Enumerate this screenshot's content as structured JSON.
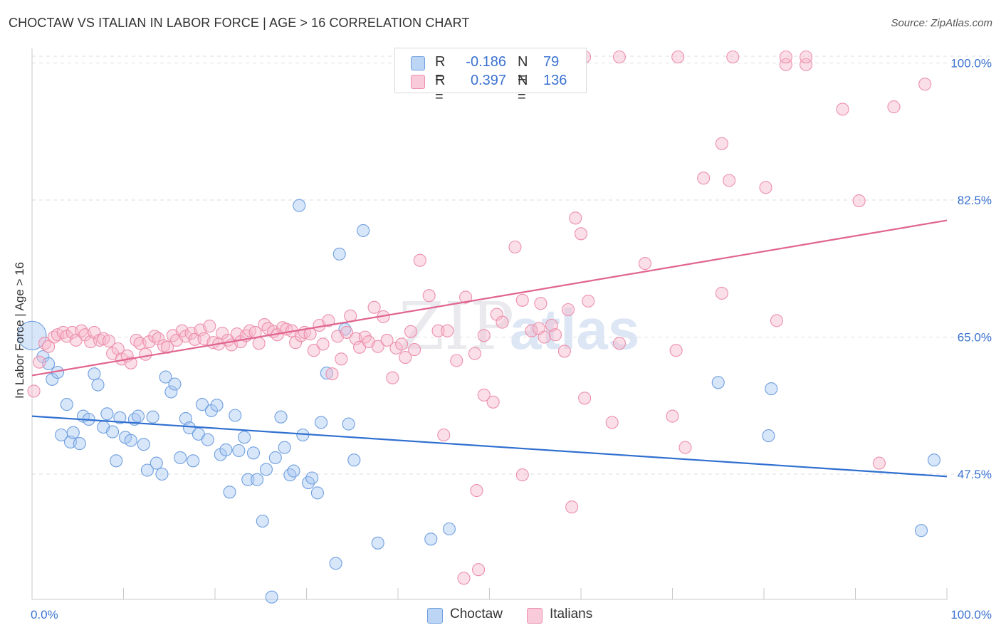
{
  "title": "CHOCTAW VS ITALIAN IN LABOR FORCE | AGE > 16 CORRELATION CHART",
  "source": "Source: ZipAtlas.com",
  "watermark": "ZIPatlas",
  "colors": {
    "choctaw_fill": "#a9c8f2",
    "choctaw_stroke": "#6f9fe0",
    "choctaw_line": "#2f6fd0",
    "italians_fill": "#f6b9cc",
    "italians_stroke": "#ec8fab",
    "italians_line": "#e0648f",
    "axis_text": "#3b73d1"
  },
  "legend": {
    "rows": [
      {
        "series": "choctaw",
        "r_label": "R =",
        "r_value": "-0.186",
        "n_label": "N =",
        "n_value": "79"
      },
      {
        "series": "italians",
        "r_label": "R =",
        "r_value": "0.397",
        "n_label": "N =",
        "n_value": "136"
      }
    ]
  },
  "bottom_legend": [
    "Choctaw",
    "Italians"
  ],
  "chart_data": {
    "type": "scatter",
    "title": "CHOCTAW VS ITALIAN IN LABOR FORCE | AGE > 16 CORRELATION CHART",
    "xlabel": "",
    "ylabel": "In Labor Force | Age > 16",
    "xlim": [
      0,
      100
    ],
    "ylim": [
      31.5,
      101.5
    ],
    "x_tick_labels": [
      "0.0%",
      "100.0%"
    ],
    "y_ticks": [
      47.5,
      65.0,
      82.5,
      100.0
    ],
    "y_tick_labels": [
      "47.5%",
      "65.0%",
      "82.5%",
      "100.0%"
    ],
    "grid": "horizontal dashed",
    "legend_position": "top-center",
    "series": [
      {
        "name": "Choctaw",
        "color": "#6f9fe0",
        "trend": {
          "x": [
            0,
            100
          ],
          "y": [
            54.9,
            47.2
          ]
        },
        "points": [
          [
            0.0,
            65.2
          ],
          [
            1.2,
            62.5
          ],
          [
            1.8,
            61.6
          ],
          [
            2.2,
            59.6
          ],
          [
            2.8,
            60.5
          ],
          [
            3.8,
            56.4
          ],
          [
            3.2,
            52.5
          ],
          [
            4.2,
            51.6
          ],
          [
            4.5,
            52.8
          ],
          [
            5.2,
            51.4
          ],
          [
            5.6,
            54.9
          ],
          [
            6.2,
            54.5
          ],
          [
            6.8,
            60.3
          ],
          [
            7.2,
            58.9
          ],
          [
            7.8,
            53.5
          ],
          [
            8.2,
            55.2
          ],
          [
            8.8,
            52.9
          ],
          [
            9.2,
            49.2
          ],
          [
            9.6,
            54.7
          ],
          [
            10.2,
            52.2
          ],
          [
            10.8,
            51.8
          ],
          [
            11.2,
            54.5
          ],
          [
            11.6,
            54.9
          ],
          [
            12.2,
            51.3
          ],
          [
            12.6,
            48.0
          ],
          [
            13.2,
            54.8
          ],
          [
            13.6,
            48.9
          ],
          [
            14.2,
            47.5
          ],
          [
            14.6,
            59.9
          ],
          [
            15.2,
            58.0
          ],
          [
            15.6,
            59.0
          ],
          [
            16.2,
            49.6
          ],
          [
            16.8,
            54.6
          ],
          [
            17.2,
            53.4
          ],
          [
            17.6,
            49.2
          ],
          [
            18.2,
            52.6
          ],
          [
            18.6,
            56.4
          ],
          [
            19.2,
            51.9
          ],
          [
            19.6,
            55.6
          ],
          [
            20.2,
            56.3
          ],
          [
            20.6,
            50.0
          ],
          [
            21.2,
            50.6
          ],
          [
            21.6,
            45.2
          ],
          [
            22.2,
            55.0
          ],
          [
            22.6,
            50.5
          ],
          [
            23.2,
            52.2
          ],
          [
            23.6,
            46.8
          ],
          [
            24.2,
            50.2
          ],
          [
            24.6,
            46.8
          ],
          [
            25.2,
            41.5
          ],
          [
            25.6,
            48.1
          ],
          [
            26.2,
            31.8
          ],
          [
            26.6,
            49.6
          ],
          [
            27.2,
            54.8
          ],
          [
            27.6,
            50.9
          ],
          [
            28.2,
            47.4
          ],
          [
            28.6,
            47.9
          ],
          [
            29.2,
            81.8
          ],
          [
            29.6,
            52.5
          ],
          [
            30.2,
            46.4
          ],
          [
            30.6,
            47.0
          ],
          [
            31.2,
            45.1
          ],
          [
            31.6,
            54.1
          ],
          [
            32.2,
            60.4
          ],
          [
            33.2,
            36.1
          ],
          [
            33.6,
            75.6
          ],
          [
            34.2,
            66.0
          ],
          [
            34.6,
            53.9
          ],
          [
            35.2,
            49.3
          ],
          [
            36.2,
            78.6
          ],
          [
            37.8,
            38.7
          ],
          [
            43.6,
            39.2
          ],
          [
            45.6,
            40.5
          ],
          [
            75.0,
            59.2
          ],
          [
            80.5,
            52.4
          ],
          [
            80.8,
            58.4
          ],
          [
            97.2,
            40.3
          ],
          [
            98.6,
            49.3
          ]
        ]
      },
      {
        "name": "Italians",
        "color": "#ec8fab",
        "trend": {
          "x": [
            0,
            100
          ],
          "y": [
            60.1,
            79.9
          ]
        },
        "points": [
          [
            0.2,
            58.1
          ],
          [
            0.8,
            61.8
          ],
          [
            1.4,
            64.2
          ],
          [
            1.8,
            63.8
          ],
          [
            2.4,
            65.0
          ],
          [
            2.8,
            65.3
          ],
          [
            3.4,
            65.6
          ],
          [
            3.8,
            65.1
          ],
          [
            4.4,
            65.6
          ],
          [
            4.8,
            64.6
          ],
          [
            5.4,
            65.8
          ],
          [
            5.8,
            65.3
          ],
          [
            6.4,
            64.4
          ],
          [
            6.8,
            65.6
          ],
          [
            7.4,
            64.6
          ],
          [
            7.8,
            64.8
          ],
          [
            8.4,
            64.5
          ],
          [
            8.8,
            62.9
          ],
          [
            9.4,
            63.5
          ],
          [
            9.8,
            62.2
          ],
          [
            10.4,
            62.6
          ],
          [
            10.8,
            61.7
          ],
          [
            11.4,
            64.6
          ],
          [
            11.8,
            64.2
          ],
          [
            12.4,
            62.8
          ],
          [
            12.8,
            64.4
          ],
          [
            13.4,
            65.1
          ],
          [
            13.8,
            64.8
          ],
          [
            14.4,
            63.9
          ],
          [
            14.8,
            63.7
          ],
          [
            15.4,
            65.2
          ],
          [
            15.8,
            64.6
          ],
          [
            16.4,
            65.8
          ],
          [
            16.8,
            65.1
          ],
          [
            17.4,
            65.5
          ],
          [
            17.8,
            64.7
          ],
          [
            18.4,
            65.9
          ],
          [
            18.8,
            64.8
          ],
          [
            19.4,
            66.4
          ],
          [
            19.8,
            64.3
          ],
          [
            20.4,
            64.1
          ],
          [
            20.8,
            65.5
          ],
          [
            21.4,
            64.6
          ],
          [
            21.8,
            64.0
          ],
          [
            22.4,
            65.4
          ],
          [
            22.8,
            64.4
          ],
          [
            23.4,
            65.2
          ],
          [
            23.8,
            65.8
          ],
          [
            24.4,
            65.6
          ],
          [
            24.8,
            64.2
          ],
          [
            25.4,
            66.6
          ],
          [
            25.8,
            66.1
          ],
          [
            26.4,
            65.7
          ],
          [
            26.8,
            65.3
          ],
          [
            27.4,
            66.2
          ],
          [
            27.8,
            66.0
          ],
          [
            28.4,
            65.8
          ],
          [
            28.8,
            64.3
          ],
          [
            29.4,
            65.2
          ],
          [
            29.8,
            65.6
          ],
          [
            30.4,
            65.4
          ],
          [
            30.8,
            63.3
          ],
          [
            31.4,
            66.5
          ],
          [
            31.8,
            64.1
          ],
          [
            32.4,
            67.1
          ],
          [
            32.8,
            60.3
          ],
          [
            33.4,
            65.1
          ],
          [
            33.8,
            62.2
          ],
          [
            34.4,
            65.6
          ],
          [
            34.8,
            67.7
          ],
          [
            35.4,
            64.8
          ],
          [
            35.8,
            63.7
          ],
          [
            36.4,
            65.0
          ],
          [
            36.8,
            64.4
          ],
          [
            37.4,
            68.8
          ],
          [
            37.8,
            63.8
          ],
          [
            38.4,
            67.6
          ],
          [
            38.8,
            64.6
          ],
          [
            39.4,
            59.8
          ],
          [
            39.8,
            63.6
          ],
          [
            40.4,
            64.1
          ],
          [
            40.8,
            62.4
          ],
          [
            41.4,
            65.7
          ],
          [
            41.8,
            63.4
          ],
          [
            42.4,
            74.8
          ],
          [
            43.4,
            70.3
          ],
          [
            44.4,
            65.8
          ],
          [
            45.4,
            65.8
          ],
          [
            46.4,
            62.0
          ],
          [
            47.4,
            70.1
          ],
          [
            48.4,
            62.9
          ],
          [
            49.4,
            65.2
          ],
          [
            50.8,
            67.9
          ],
          [
            49.4,
            57.6
          ],
          [
            50.4,
            56.7
          ],
          [
            51.4,
            66.9
          ],
          [
            52.8,
            76.5
          ],
          [
            53.6,
            69.7
          ],
          [
            54.6,
            65.8
          ],
          [
            55.4,
            66.1
          ],
          [
            55.6,
            69.3
          ],
          [
            56.0,
            65.0
          ],
          [
            56.8,
            66.5
          ],
          [
            57.2,
            65.3
          ],
          [
            58.2,
            63.2
          ],
          [
            58.6,
            68.5
          ],
          [
            59.4,
            80.2
          ],
          [
            60.0,
            78.2
          ],
          [
            60.4,
            57.2
          ],
          [
            60.8,
            69.6
          ],
          [
            63.4,
            54.1
          ],
          [
            64.2,
            64.2
          ],
          [
            67.0,
            74.4
          ],
          [
            70.0,
            54.9
          ],
          [
            70.4,
            63.3
          ],
          [
            71.4,
            50.9
          ],
          [
            75.4,
            70.6
          ],
          [
            75.4,
            89.7
          ],
          [
            73.4,
            85.3
          ],
          [
            76.2,
            85.0
          ],
          [
            80.2,
            84.1
          ],
          [
            81.4,
            67.1
          ],
          [
            82.4,
            99.8
          ],
          [
            84.6,
            99.8
          ],
          [
            88.6,
            94.1
          ],
          [
            90.4,
            82.4
          ],
          [
            92.6,
            48.9
          ],
          [
            94.2,
            94.4
          ],
          [
            97.6,
            97.3
          ],
          [
            59.0,
            43.3
          ],
          [
            48.6,
            45.4
          ],
          [
            45.0,
            52.5
          ],
          [
            53.6,
            47.4
          ],
          [
            48.8,
            35.3
          ],
          [
            47.2,
            34.2
          ]
        ]
      }
    ],
    "top_clipped_italians_x": [
      52.8,
      59.8,
      60.4,
      64.2,
      70.6,
      76.6,
      82.4,
      84.6
    ]
  }
}
